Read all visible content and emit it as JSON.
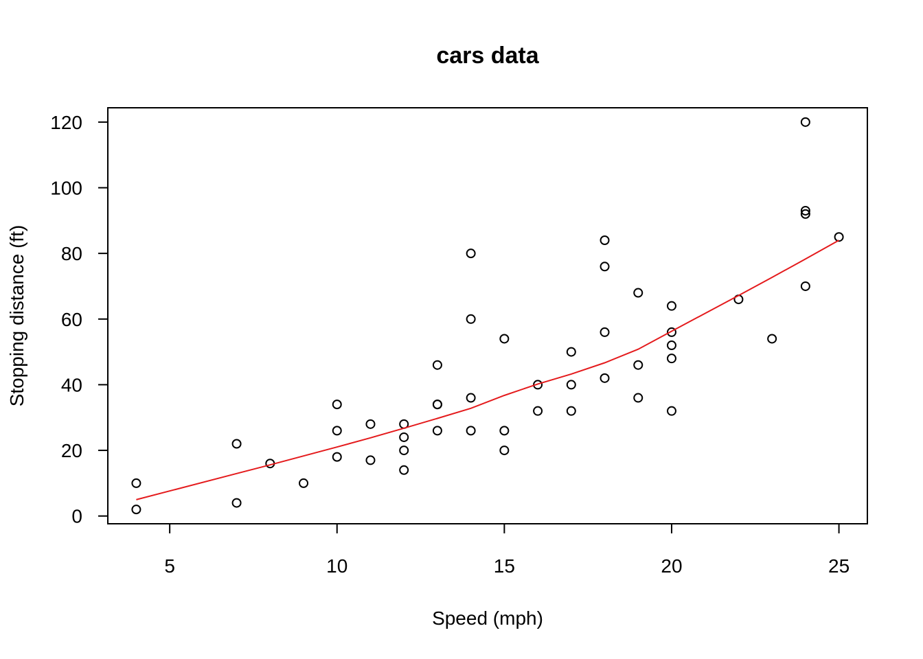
{
  "chart_data": {
    "type": "scatter",
    "title": "cars data",
    "xlabel": "Speed (mph)",
    "ylabel": "Stopping distance (ft)",
    "xlim": [
      3.15,
      25.85
    ],
    "ylim": [
      -2.36,
      124.36
    ],
    "xticks": [
      5,
      10,
      15,
      20,
      25
    ],
    "yticks": [
      0,
      20,
      40,
      60,
      80,
      100,
      120
    ],
    "grid": false,
    "legend": "none",
    "points": {
      "x": [
        4,
        4,
        7,
        7,
        8,
        9,
        10,
        10,
        10,
        11,
        11,
        12,
        12,
        12,
        12,
        13,
        13,
        13,
        13,
        14,
        14,
        14,
        14,
        15,
        15,
        15,
        16,
        16,
        17,
        17,
        17,
        18,
        18,
        18,
        18,
        19,
        19,
        19,
        20,
        20,
        20,
        20,
        20,
        22,
        23,
        24,
        24,
        24,
        24,
        25
      ],
      "y": [
        2,
        10,
        4,
        22,
        16,
        10,
        18,
        26,
        34,
        17,
        28,
        14,
        20,
        24,
        28,
        26,
        34,
        34,
        46,
        26,
        36,
        60,
        80,
        20,
        26,
        54,
        32,
        40,
        32,
        40,
        50,
        42,
        56,
        76,
        84,
        36,
        46,
        68,
        32,
        48,
        52,
        56,
        64,
        66,
        54,
        70,
        92,
        93,
        120,
        85
      ]
    },
    "smooth_line": {
      "color": "#e41a1c",
      "x": [
        4,
        7,
        8,
        10,
        11,
        12,
        13,
        14,
        15,
        16,
        17,
        18,
        19,
        20,
        22,
        23,
        24,
        25
      ],
      "y": [
        4.97,
        12.95,
        15.59,
        21.02,
        23.83,
        26.74,
        29.73,
        32.82,
        36.74,
        40.21,
        43.24,
        46.68,
        50.82,
        56.29,
        67.17,
        72.68,
        78.29,
        84.01
      ]
    }
  }
}
